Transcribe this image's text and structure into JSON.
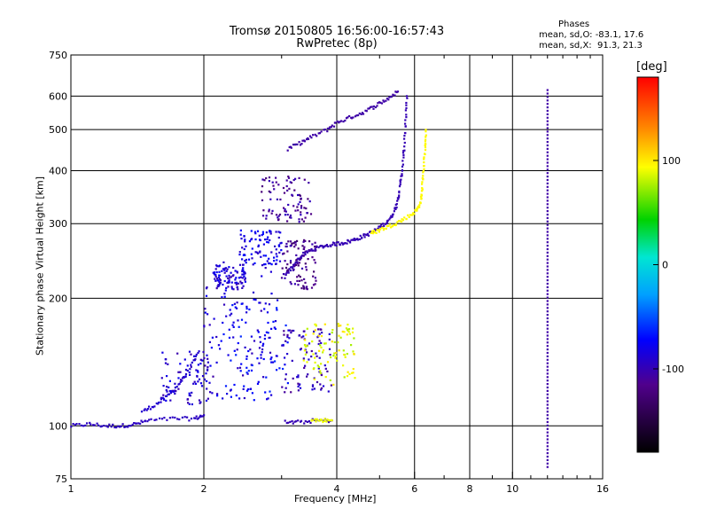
{
  "title_line1": "Tromsø 20150805 16:56:00-16:57:43",
  "title_line2": "RwPretec (8p)",
  "stats": {
    "title": "Phases",
    "o_line": "mean, sd,O: -83.1, 17.6",
    "x_line": "mean, sd,X:  91.3, 21.3"
  },
  "colorbar": {
    "title": "[deg]",
    "range": [
      -180,
      180
    ],
    "ticks": [
      {
        "value": 100,
        "label": "100"
      },
      {
        "value": 0,
        "label": "0"
      },
      {
        "value": -100,
        "label": "-100"
      }
    ]
  },
  "chart_data": {
    "type": "scatter",
    "title": "Tromsø 20150805 16:56:00-16:57:43",
    "subtitle": "RwPretec (8p)",
    "xlabel": "Frequency [MHz]",
    "ylabel": "Stationary phase Virtual Height [km]",
    "xscale": "log",
    "yscale": "log",
    "xlim": [
      1,
      16
    ],
    "ylim": [
      75,
      750
    ],
    "x_ticks": [
      1,
      2,
      4,
      6,
      8,
      10,
      16
    ],
    "y_ticks": [
      75,
      100,
      200,
      300,
      400,
      500,
      600,
      750
    ],
    "grid": true,
    "color_variable": "phase (deg)",
    "traces": [
      {
        "x": [
          1.0,
          1.1,
          1.2,
          1.3,
          1.4,
          1.5,
          1.7,
          1.9,
          2.0
        ],
        "y": [
          100,
          101,
          100,
          100,
          101,
          103,
          104,
          104,
          106
        ],
        "phase": -95
      },
      {
        "x": [
          1.45,
          1.55,
          1.65,
          1.75,
          1.85,
          1.95
        ],
        "y": [
          108,
          112,
          117,
          125,
          135,
          150
        ],
        "phase": -90
      },
      {
        "x": [
          3.05,
          3.15,
          3.25,
          3.35,
          3.5,
          3.7,
          3.9,
          4.1,
          4.3,
          4.5,
          4.7,
          4.9,
          5.1,
          5.3,
          5.45,
          5.55,
          5.62,
          5.68,
          5.72,
          5.76
        ],
        "y": [
          225,
          235,
          245,
          253,
          260,
          265,
          268,
          270,
          273,
          278,
          283,
          290,
          298,
          310,
          330,
          360,
          400,
          450,
          520,
          600
        ],
        "phase": -100
      },
      {
        "x": [
          3.1,
          3.3,
          3.5,
          3.8,
          4.0,
          4.3,
          4.6,
          4.9,
          5.2,
          5.5
        ],
        "y": [
          450,
          465,
          480,
          500,
          520,
          535,
          550,
          570,
          590,
          615
        ],
        "phase": -105
      },
      {
        "x": [
          4.8,
          5.0,
          5.3,
          5.6,
          5.9,
          6.1,
          6.2,
          6.25,
          6.3,
          6.33,
          6.36
        ],
        "y": [
          285,
          290,
          297,
          305,
          315,
          325,
          340,
          370,
          410,
          450,
          500
        ],
        "phase": 95
      },
      {
        "x": [
          3.05,
          3.3,
          3.6,
          3.9
        ],
        "y": [
          102,
          102,
          103,
          103
        ],
        "phase": -100
      },
      {
        "x": [
          3.5,
          3.7,
          3.9
        ],
        "y": [
          103,
          103,
          103
        ],
        "phase": 90
      },
      {
        "x": [
          12.0
        ],
        "y_range": [
          80,
          620
        ],
        "phase": -105
      }
    ],
    "clouds": [
      {
        "x_range": [
          2.0,
          2.9
        ],
        "y_range": [
          115,
          250
        ],
        "phase": -85
      },
      {
        "x_range": [
          2.2,
          3.1
        ],
        "y_range": [
          115,
          200
        ],
        "phase": -75
      },
      {
        "x_range": [
          2.4,
          3.0
        ],
        "y_range": [
          240,
          290
        ],
        "phase": -80
      },
      {
        "x_range": [
          1.6,
          2.1
        ],
        "y_range": [
          112,
          150
        ],
        "phase": -90
      },
      {
        "x_range": [
          3.0,
          3.9
        ],
        "y_range": [
          120,
          170
        ],
        "phase": -100
      },
      {
        "x_range": [
          3.3,
          4.4
        ],
        "y_range": [
          125,
          175
        ],
        "phase": 90
      },
      {
        "x_range": [
          3.0,
          3.6
        ],
        "y_range": [
          210,
          275
        ],
        "phase": -115
      },
      {
        "x_range": [
          2.7,
          3.5
        ],
        "y_range": [
          300,
          390
        ],
        "phase": -110
      },
      {
        "x_range": [
          2.1,
          2.5
        ],
        "y_range": [
          210,
          240
        ],
        "phase": -90
      }
    ]
  }
}
